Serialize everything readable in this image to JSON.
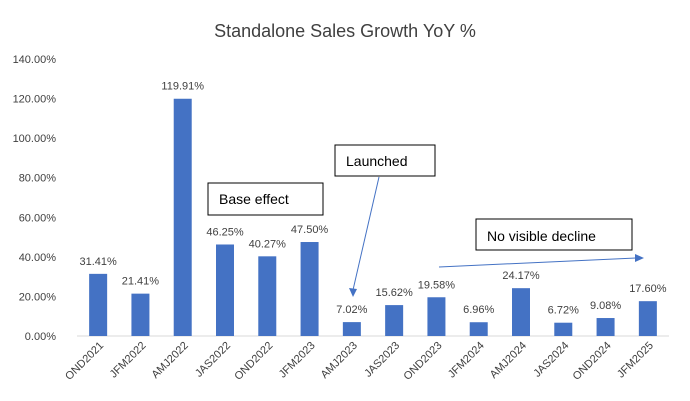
{
  "chart_data": {
    "type": "bar",
    "title": "Standalone Sales Growth YoY %",
    "xlabel": "",
    "ylabel": "",
    "categories": [
      "OND2021",
      "JFM2022",
      "AMJ2022",
      "JAS2022",
      "OND2022",
      "JFM2023",
      "AMJ2023",
      "JAS2023",
      "OND2023",
      "JFM2024",
      "AMJ2024",
      "JAS2024",
      "OND2024",
      "JFM2025"
    ],
    "values": [
      31.41,
      21.41,
      119.91,
      46.25,
      40.27,
      47.5,
      7.02,
      15.62,
      19.58,
      6.96,
      24.17,
      6.72,
      9.08,
      17.6
    ],
    "value_labels": [
      "31.41%",
      "21.41%",
      "119.91%",
      "46.25%",
      "40.27%",
      "47.50%",
      "7.02%",
      "15.62%",
      "19.58%",
      "6.96%",
      "24.17%",
      "6.72%",
      "9.08%",
      "17.60%"
    ],
    "ylim": [
      0,
      140
    ],
    "yticks": [
      0,
      20,
      40,
      60,
      80,
      100,
      120,
      140
    ],
    "ytick_labels": [
      "0.00%",
      "20.00%",
      "40.00%",
      "60.00%",
      "80.00%",
      "100.00%",
      "120.00%",
      "140.00%"
    ],
    "grid": false,
    "legend": "none",
    "bar_color": "#4472C4",
    "annotations": [
      {
        "text": "Base effect"
      },
      {
        "text": "Launched"
      },
      {
        "text": "No visible decline"
      }
    ]
  }
}
